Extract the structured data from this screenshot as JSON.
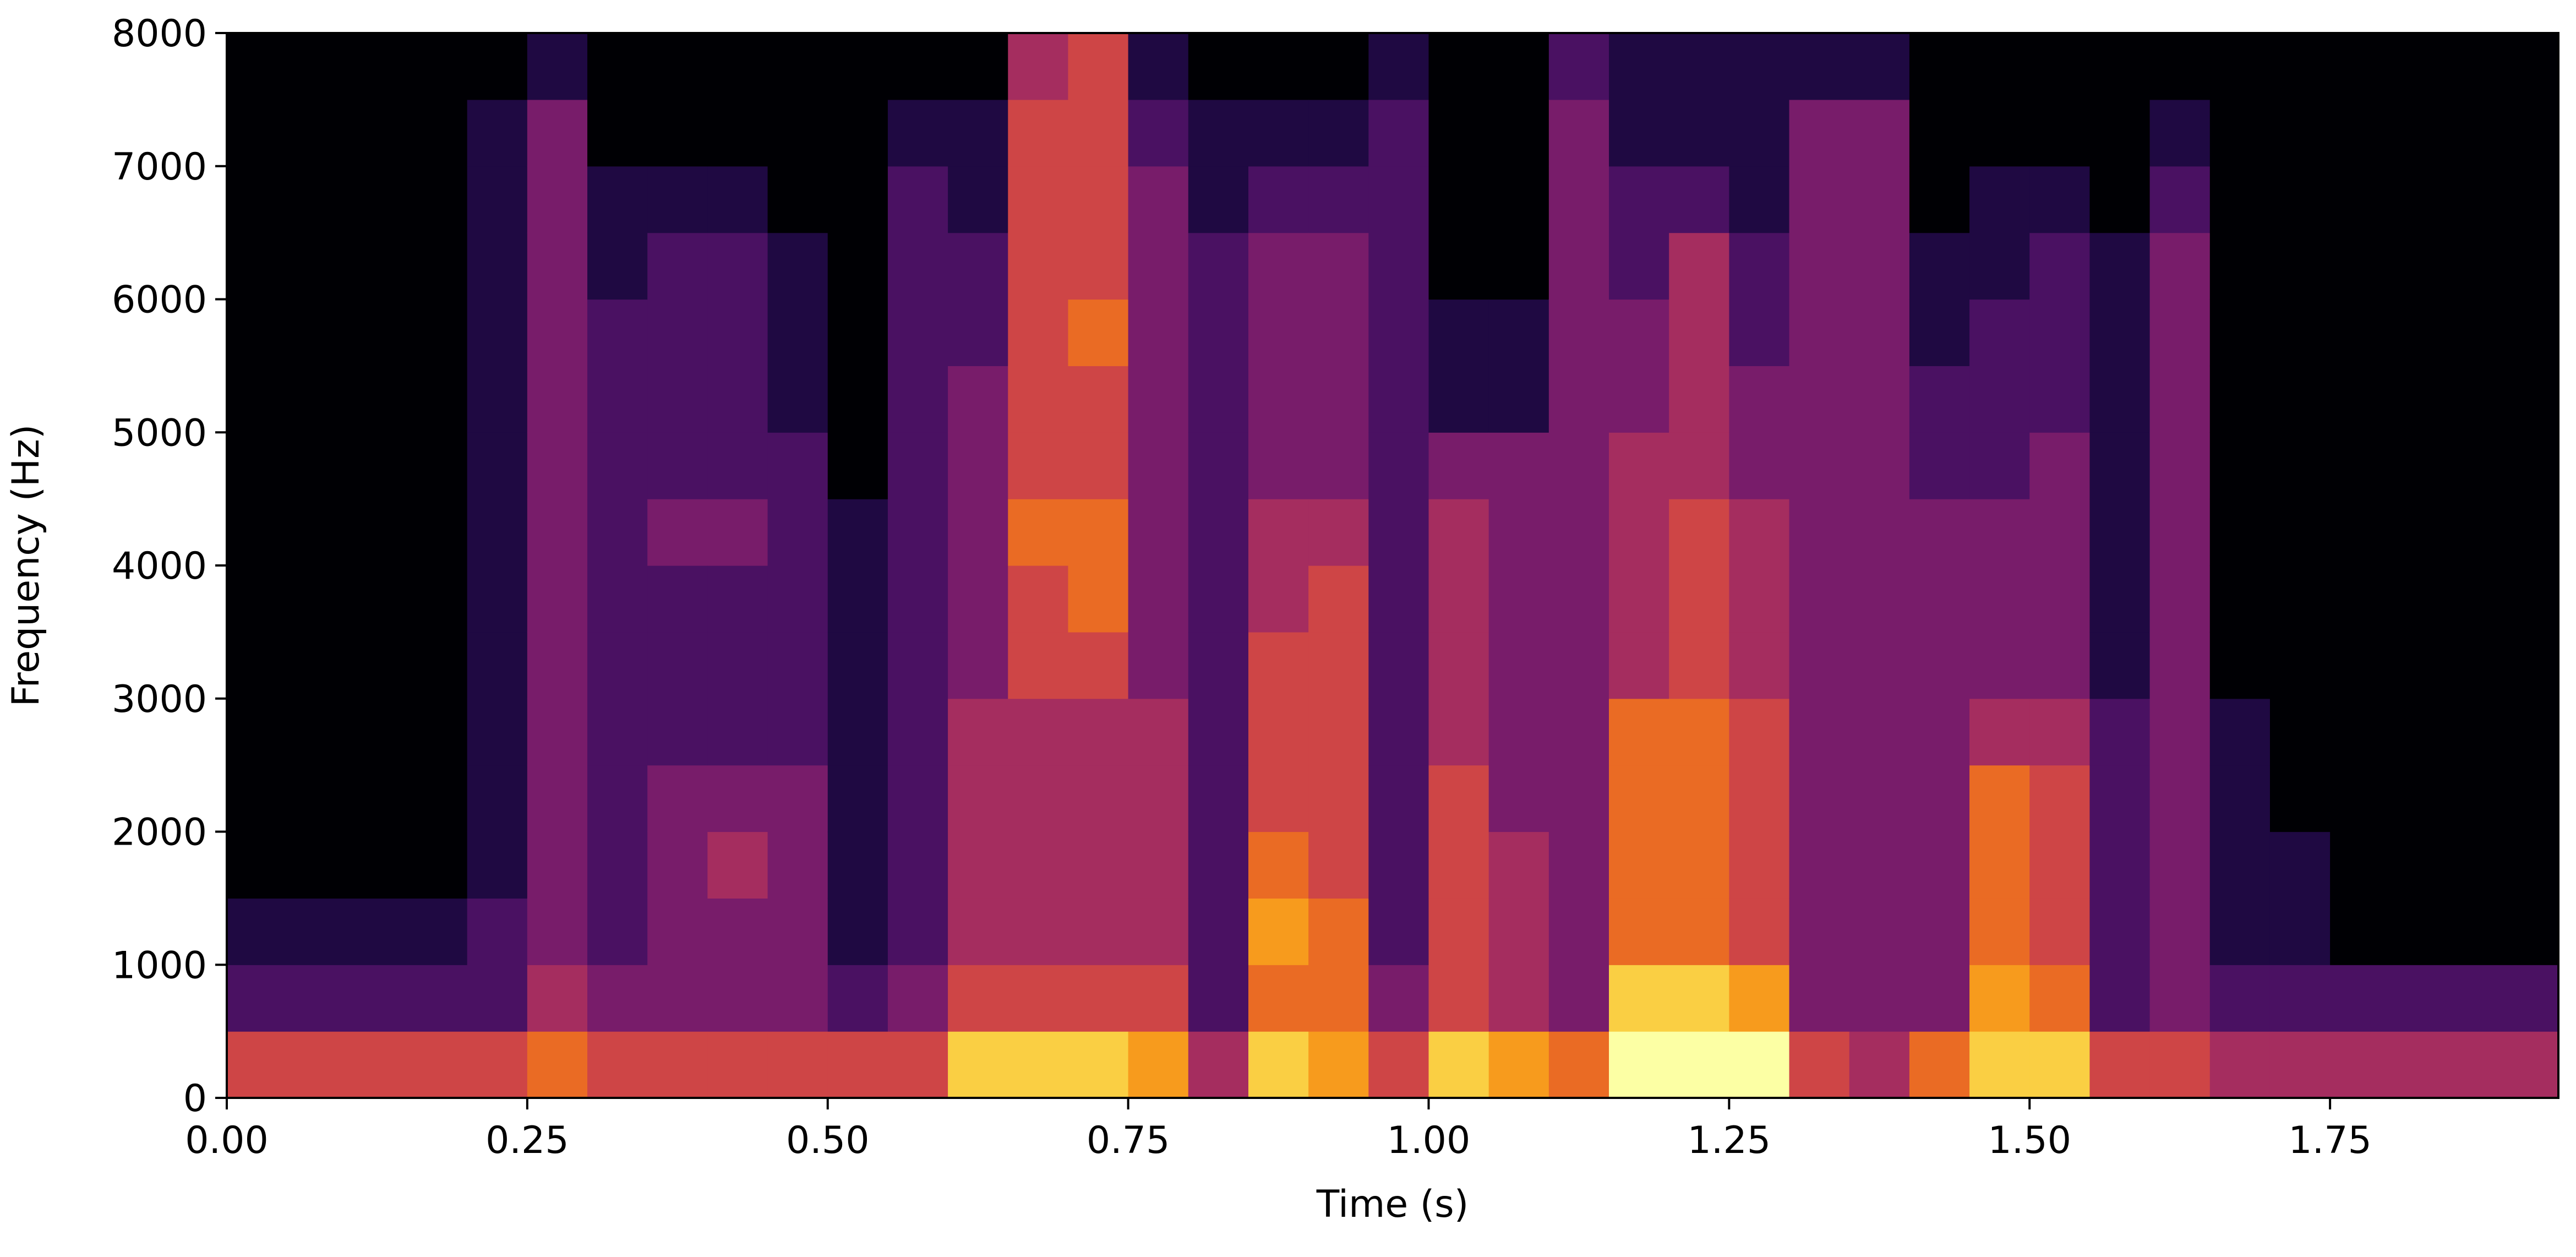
{
  "chart_data": {
    "type": "spectrogram",
    "xlabel": "Time (s)",
    "ylabel": "Frequency (Hz)",
    "colormap": "inferno",
    "xlim": [
      0,
      1.94
    ],
    "ylim": [
      0,
      8000
    ],
    "xticks": [
      {
        "value": 0,
        "label": "0.00"
      },
      0.25,
      {
        "value": 0.5,
        "label": "0.50"
      },
      0.75,
      {
        "value": 1,
        "label": "1.00"
      },
      1.25,
      {
        "value": 1.5,
        "label": "1.50"
      },
      1.75
    ],
    "yticks": [
      0,
      1000,
      2000,
      3000,
      4000,
      5000,
      6000,
      7000,
      8000
    ],
    "xbins": [
      0,
      0.05,
      0.1,
      0.15,
      0.2,
      0.25,
      0.3,
      0.35,
      0.4,
      0.45,
      0.5,
      0.55,
      0.6,
      0.65,
      0.7,
      0.75,
      0.8,
      0.85,
      0.9,
      0.95,
      1,
      1.05,
      1.1,
      1.15,
      1.2,
      1.25,
      1.3,
      1.35,
      1.4,
      1.45,
      1.5,
      1.55,
      1.6,
      1.65,
      1.7,
      1.75,
      1.8,
      1.85,
      1.9,
      1.95
    ],
    "ybins": [
      0,
      500,
      1000,
      1500,
      2000,
      2500,
      3000,
      3500,
      4000,
      4500,
      5000,
      5500,
      6000,
      6500,
      7000,
      7500,
      8000
    ],
    "zlim": [
      0,
      9
    ],
    "z": [
      [
        5,
        2,
        1,
        0,
        0,
        0,
        0,
        0,
        0,
        0,
        0,
        0,
        0,
        0,
        0,
        0
      ],
      [
        5,
        2,
        1,
        0,
        0,
        0,
        0,
        0,
        0,
        0,
        0,
        0,
        0,
        0,
        0,
        0
      ],
      [
        5,
        2,
        1,
        0,
        0,
        0,
        0,
        0,
        0,
        0,
        0,
        0,
        0,
        0,
        0,
        0
      ],
      [
        5,
        2,
        1,
        0,
        0,
        0,
        0,
        0,
        0,
        0,
        0,
        0,
        0,
        0,
        0,
        0
      ],
      [
        5,
        2,
        2,
        1,
        1,
        1,
        1,
        1,
        1,
        1,
        1,
        1,
        1,
        1,
        1,
        0
      ],
      [
        6,
        4,
        3,
        3,
        3,
        3,
        3,
        3,
        3,
        3,
        3,
        3,
        3,
        3,
        3,
        1
      ],
      [
        5,
        3,
        2,
        2,
        2,
        2,
        2,
        2,
        2,
        2,
        2,
        2,
        1,
        1,
        0,
        0
      ],
      [
        5,
        3,
        3,
        3,
        3,
        2,
        2,
        2,
        3,
        2,
        2,
        2,
        2,
        1,
        0,
        0
      ],
      [
        5,
        3,
        3,
        4,
        3,
        2,
        2,
        2,
        3,
        2,
        2,
        2,
        2,
        1,
        0,
        0
      ],
      [
        5,
        3,
        3,
        3,
        3,
        2,
        2,
        2,
        2,
        2,
        1,
        1,
        1,
        0,
        0,
        0
      ],
      [
        5,
        2,
        1,
        1,
        1,
        1,
        1,
        1,
        1,
        0,
        0,
        0,
        0,
        0,
        0,
        0
      ],
      [
        5,
        3,
        2,
        2,
        2,
        2,
        2,
        2,
        2,
        2,
        2,
        2,
        2,
        2,
        1,
        0
      ],
      [
        8,
        5,
        4,
        4,
        4,
        4,
        3,
        3,
        3,
        3,
        3,
        2,
        2,
        1,
        1,
        0
      ],
      [
        8,
        5,
        4,
        4,
        4,
        4,
        5,
        5,
        6,
        5,
        5,
        5,
        5,
        5,
        5,
        4
      ],
      [
        8,
        5,
        4,
        4,
        4,
        4,
        5,
        6,
        6,
        5,
        5,
        6,
        5,
        5,
        5,
        5
      ],
      [
        7,
        5,
        4,
        4,
        4,
        4,
        3,
        3,
        3,
        3,
        3,
        3,
        3,
        3,
        2,
        1
      ],
      [
        4,
        2,
        2,
        2,
        2,
        2,
        2,
        2,
        2,
        2,
        2,
        2,
        2,
        1,
        1,
        0
      ],
      [
        8,
        6,
        7,
        6,
        5,
        5,
        5,
        4,
        4,
        3,
        3,
        3,
        3,
        2,
        1,
        0
      ],
      [
        7,
        6,
        6,
        5,
        5,
        5,
        5,
        5,
        4,
        3,
        3,
        3,
        3,
        2,
        1,
        0
      ],
      [
        5,
        3,
        2,
        2,
        2,
        2,
        2,
        2,
        2,
        2,
        2,
        2,
        2,
        2,
        2,
        1
      ],
      [
        8,
        5,
        5,
        5,
        5,
        4,
        4,
        4,
        4,
        3,
        1,
        1,
        0,
        0,
        0,
        0
      ],
      [
        7,
        4,
        4,
        4,
        3,
        3,
        3,
        3,
        3,
        3,
        1,
        1,
        0,
        0,
        0,
        0
      ],
      [
        6,
        3,
        3,
        3,
        3,
        3,
        3,
        3,
        3,
        3,
        3,
        3,
        3,
        3,
        3,
        2
      ],
      [
        9,
        8,
        6,
        6,
        6,
        6,
        4,
        4,
        4,
        4,
        3,
        3,
        2,
        2,
        1,
        1
      ],
      [
        9,
        8,
        6,
        6,
        6,
        6,
        5,
        5,
        5,
        4,
        4,
        4,
        4,
        2,
        1,
        1
      ],
      [
        9,
        7,
        5,
        5,
        5,
        5,
        4,
        4,
        4,
        3,
        3,
        2,
        2,
        1,
        1,
        1
      ],
      [
        5,
        3,
        3,
        3,
        3,
        3,
        3,
        3,
        3,
        3,
        3,
        3,
        3,
        3,
        3,
        1
      ],
      [
        4,
        3,
        3,
        3,
        3,
        3,
        3,
        3,
        3,
        3,
        3,
        3,
        3,
        3,
        3,
        1
      ],
      [
        6,
        3,
        3,
        3,
        3,
        3,
        3,
        3,
        3,
        2,
        2,
        1,
        1,
        0,
        0,
        0
      ],
      [
        8,
        7,
        6,
        6,
        6,
        4,
        3,
        3,
        3,
        2,
        2,
        2,
        1,
        1,
        0,
        0
      ],
      [
        8,
        6,
        5,
        5,
        5,
        4,
        3,
        3,
        3,
        3,
        2,
        2,
        2,
        1,
        0,
        0
      ],
      [
        5,
        2,
        2,
        2,
        2,
        2,
        1,
        1,
        1,
        1,
        1,
        1,
        1,
        0,
        0,
        0
      ],
      [
        5,
        3,
        3,
        3,
        3,
        3,
        3,
        3,
        3,
        3,
        3,
        3,
        3,
        2,
        1,
        0
      ],
      [
        4,
        2,
        1,
        1,
        1,
        1,
        0,
        0,
        0,
        0,
        0,
        0,
        0,
        0,
        0,
        0
      ],
      [
        4,
        2,
        1,
        1,
        0,
        0,
        0,
        0,
        0,
        0,
        0,
        0,
        0,
        0,
        0,
        0
      ],
      [
        4,
        2,
        0,
        0,
        0,
        0,
        0,
        0,
        0,
        0,
        0,
        0,
        0,
        0,
        0,
        0
      ],
      [
        4,
        2,
        0,
        0,
        0,
        0,
        0,
        0,
        0,
        0,
        0,
        0,
        0,
        0,
        0,
        0
      ],
      [
        4,
        2,
        0,
        0,
        0,
        0,
        0,
        0,
        0,
        0,
        0,
        0,
        0,
        0,
        0,
        0
      ],
      [
        4,
        2,
        0,
        0,
        0,
        0,
        0,
        0,
        0,
        0,
        0,
        0,
        0,
        0,
        0,
        0
      ]
    ]
  }
}
